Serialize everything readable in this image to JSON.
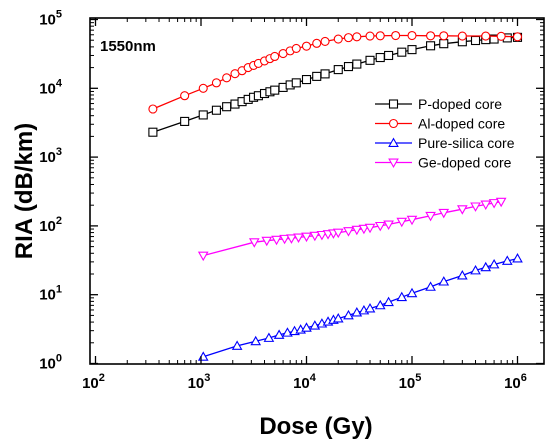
{
  "chart_data": {
    "type": "line",
    "annotation": "1550nm",
    "xlabel": "Dose (Gy)",
    "ylabel": "RIA (dB/km)",
    "x_scale": "log",
    "y_scale": "log",
    "xlim": [
      100,
      1500000
    ],
    "ylim": [
      1,
      100000
    ],
    "x_ticks": [
      {
        "base": "10",
        "exp": "2",
        "value": 100
      },
      {
        "base": "10",
        "exp": "3",
        "value": 1000
      },
      {
        "base": "10",
        "exp": "4",
        "value": 10000
      },
      {
        "base": "10",
        "exp": "5",
        "value": 100000
      },
      {
        "base": "10",
        "exp": "6",
        "value": 1000000
      }
    ],
    "y_ticks": [
      {
        "base": "10",
        "exp": "0",
        "value": 1
      },
      {
        "base": "10",
        "exp": "1",
        "value": 10
      },
      {
        "base": "10",
        "exp": "2",
        "value": 100
      },
      {
        "base": "10",
        "exp": "3",
        "value": 1000
      },
      {
        "base": "10",
        "exp": "4",
        "value": 10000
      },
      {
        "base": "10",
        "exp": "5",
        "value": 100000
      }
    ],
    "grid": false,
    "legend_position": "upper-right",
    "series": [
      {
        "name": "P-doped core",
        "color": "#000000",
        "marker": "square",
        "x": [
          350,
          700,
          1050,
          1400,
          1750,
          2100,
          2450,
          2800,
          3150,
          3500,
          4000,
          4500,
          5000,
          6000,
          7000,
          8000,
          10000,
          12500,
          15000,
          20000,
          25000,
          30000,
          40000,
          50000,
          60000,
          80000,
          100000,
          150000,
          200000,
          300000,
          400000,
          500000,
          600000,
          800000,
          1000000
        ],
        "y": [
          2300,
          3300,
          4100,
          4800,
          5400,
          5900,
          6400,
          6900,
          7400,
          7800,
          8400,
          8900,
          9400,
          10300,
          11200,
          12000,
          13400,
          14900,
          16200,
          18700,
          20700,
          22500,
          25500,
          28000,
          30000,
          33500,
          36500,
          41500,
          44500,
          47500,
          49500,
          51000,
          52000,
          54000,
          55000
        ]
      },
      {
        "name": "Al-doped core",
        "color": "#ff0000",
        "marker": "circle",
        "x": [
          350,
          700,
          1050,
          1400,
          1750,
          2100,
          2450,
          2800,
          3150,
          3500,
          4000,
          4500,
          5000,
          6000,
          7000,
          8000,
          10000,
          12500,
          15000,
          20000,
          25000,
          30000,
          40000,
          50000,
          70000,
          100000,
          150000,
          200000,
          300000,
          500000,
          700000,
          1000000
        ],
        "y": [
          5000,
          7800,
          10000,
          12000,
          14200,
          16300,
          18000,
          20000,
          21500,
          23000,
          25000,
          27000,
          29000,
          32000,
          35000,
          38000,
          41000,
          45000,
          48000,
          52000,
          54500,
          56000,
          57500,
          58000,
          58500,
          58500,
          58000,
          58000,
          57500,
          57500,
          57000,
          56000
        ]
      },
      {
        "name": "Pure-silica core",
        "color": "#0000ff",
        "marker": "triangle-up",
        "x": [
          1050,
          2200,
          3300,
          4400,
          5500,
          6600,
          7700,
          8800,
          10000,
          12000,
          14000,
          16000,
          18000,
          20000,
          25000,
          30000,
          35000,
          40000,
          50000,
          60000,
          80000,
          100000,
          150000,
          200000,
          300000,
          400000,
          500000,
          600000,
          800000,
          1000000
        ],
        "y": [
          1.25,
          1.8,
          2.1,
          2.35,
          2.6,
          2.8,
          2.95,
          3.1,
          3.3,
          3.55,
          3.8,
          4.05,
          4.3,
          4.5,
          5.0,
          5.5,
          5.9,
          6.3,
          7.0,
          7.8,
          9.2,
          10.5,
          13.0,
          15.5,
          19.0,
          22.5,
          25.0,
          27.5,
          31.0,
          33.5
        ]
      },
      {
        "name": "Ge-doped core",
        "color": "#ff00ff",
        "marker": "triangle-down",
        "x": [
          1050,
          3200,
          4200,
          5200,
          6200,
          7200,
          8400,
          10000,
          12000,
          14000,
          16000,
          18000,
          20000,
          25000,
          30000,
          35000,
          40000,
          50000,
          60000,
          80000,
          100000,
          150000,
          200000,
          300000,
          400000,
          500000,
          600000,
          700000
        ],
        "y": [
          37,
          58,
          61,
          63,
          65,
          66,
          68,
          70,
          72,
          74,
          76,
          78,
          80,
          84,
          88,
          91,
          94,
          100,
          105,
          115,
          123,
          140,
          155,
          175,
          192,
          205,
          215,
          225
        ]
      }
    ]
  }
}
